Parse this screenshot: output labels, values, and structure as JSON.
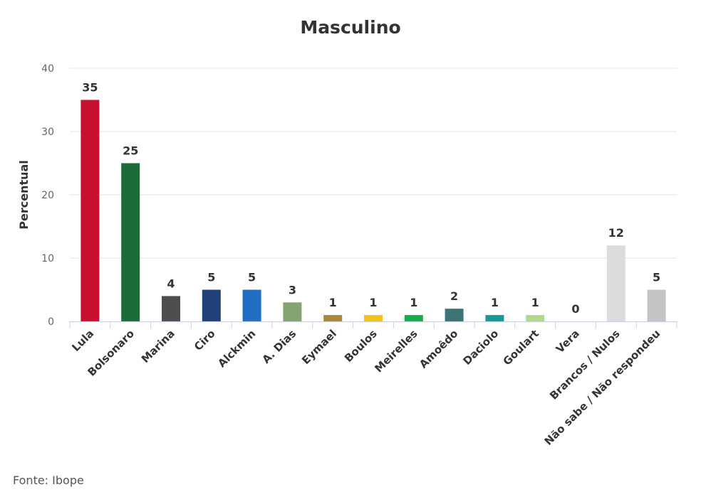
{
  "source": "Fonte: Ibope",
  "chart_data": {
    "type": "bar",
    "title": "Masculino",
    "xlabel": "",
    "ylabel": "Percentual",
    "ylim": [
      0,
      40
    ],
    "yticks": [
      0,
      10,
      20,
      30,
      40
    ],
    "grid": true,
    "legend": "none",
    "categories": [
      "Lula",
      "Bolsonaro",
      "Marina",
      "Ciro",
      "Alckmin",
      "A. Dias",
      "Eymael",
      "Boulos",
      "Meirelles",
      "Amoêdo",
      "Daciolo",
      "Goulart",
      "Vera",
      "Brancos / Nulos",
      "Não sabe / Não respondeu"
    ],
    "values": [
      35,
      25,
      4,
      5,
      5,
      3,
      1,
      1,
      1,
      2,
      1,
      1,
      0,
      12,
      5
    ],
    "colors": [
      "#c8102e",
      "#1e6b3a",
      "#4d4f4f",
      "#21407a",
      "#1f6ec2",
      "#85a474",
      "#a88838",
      "#f2c21b",
      "#17ad48",
      "#3c7373",
      "#189898",
      "#b4d88a",
      "#cccccc",
      "#dcdcdc",
      "#c4c4c4"
    ]
  }
}
